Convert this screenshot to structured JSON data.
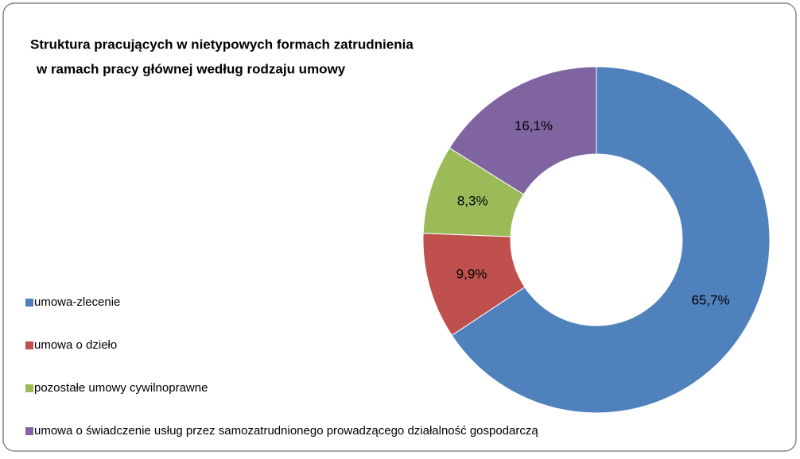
{
  "chart_data": {
    "type": "donut",
    "title": [
      "Struktura pracujących  w nietypowych formach zatrudnienia",
      "w ramach pracy głównej według rodzaju umowy"
    ],
    "categories": [
      "umowa-zlecenie",
      "umowa o dzieło",
      "pozostałe umowy cywilnoprawne",
      "umowa o świadczenie usług przez samozatrudnionego prowadzącego działalność gospodarczą"
    ],
    "values": [
      65.7,
      9.9,
      8.3,
      16.1
    ],
    "value_labels": [
      "65,7%",
      "9,9%",
      "8,3%",
      "16,1%"
    ],
    "colors": [
      "#4f81bd",
      "#c0504d",
      "#9bbb59",
      "#8064a2"
    ],
    "legend": "left"
  }
}
